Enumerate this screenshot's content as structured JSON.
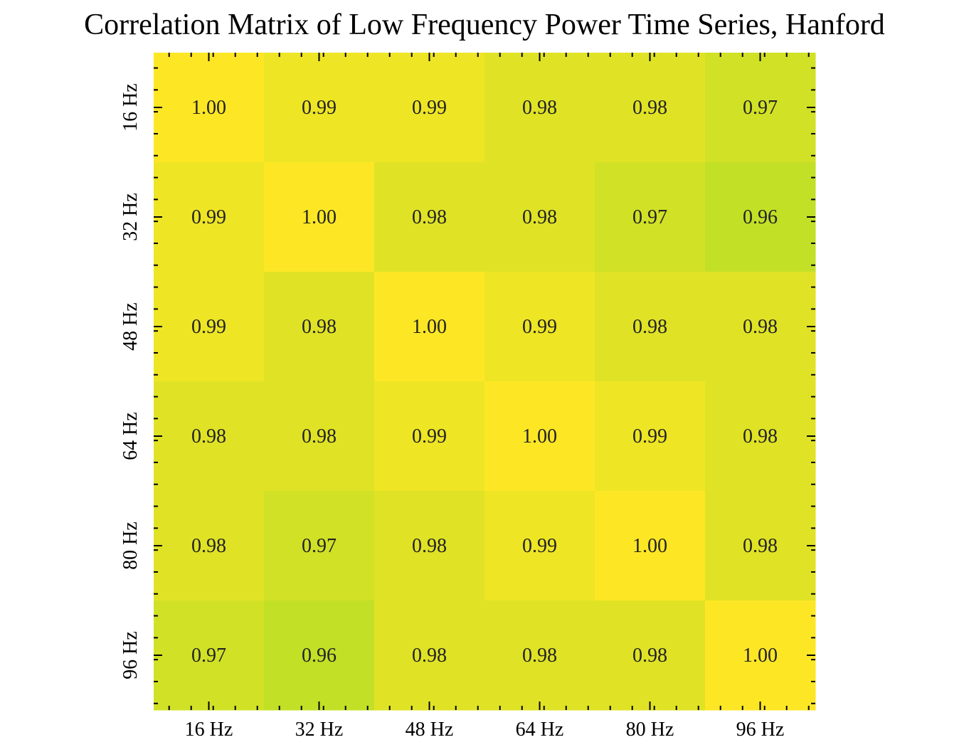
{
  "chart_data": {
    "type": "heatmap",
    "title": "Correlation Matrix of Low Frequency Power Time Series, Hanford",
    "x_categories": [
      "16 Hz",
      "32 Hz",
      "48 Hz",
      "64 Hz",
      "80 Hz",
      "96 Hz"
    ],
    "y_categories": [
      "16 Hz",
      "32 Hz",
      "48 Hz",
      "64 Hz",
      "80 Hz",
      "96 Hz"
    ],
    "values": [
      [
        1.0,
        0.99,
        0.99,
        0.98,
        0.98,
        0.97
      ],
      [
        0.99,
        1.0,
        0.98,
        0.98,
        0.97,
        0.96
      ],
      [
        0.99,
        0.98,
        1.0,
        0.99,
        0.98,
        0.98
      ],
      [
        0.98,
        0.98,
        0.99,
        1.0,
        0.99,
        0.98
      ],
      [
        0.98,
        0.97,
        0.98,
        0.99,
        1.0,
        0.98
      ],
      [
        0.97,
        0.96,
        0.98,
        0.98,
        0.98,
        1.0
      ]
    ],
    "cell_labels": [
      [
        "1.00",
        "0.99",
        "0.99",
        "0.98",
        "0.98",
        "0.97"
      ],
      [
        "0.99",
        "1.00",
        "0.98",
        "0.98",
        "0.97",
        "0.96"
      ],
      [
        "0.99",
        "0.98",
        "1.00",
        "0.99",
        "0.98",
        "0.98"
      ],
      [
        "0.98",
        "0.98",
        "0.99",
        "1.00",
        "0.99",
        "0.98"
      ],
      [
        "0.98",
        "0.97",
        "0.98",
        "0.99",
        "1.00",
        "0.98"
      ],
      [
        "0.97",
        "0.96",
        "0.98",
        "0.98",
        "0.98",
        "1.00"
      ]
    ],
    "colormap": "viridis",
    "color_range": [
      0.0,
      1.0
    ],
    "colorbar": false,
    "grid": false
  }
}
